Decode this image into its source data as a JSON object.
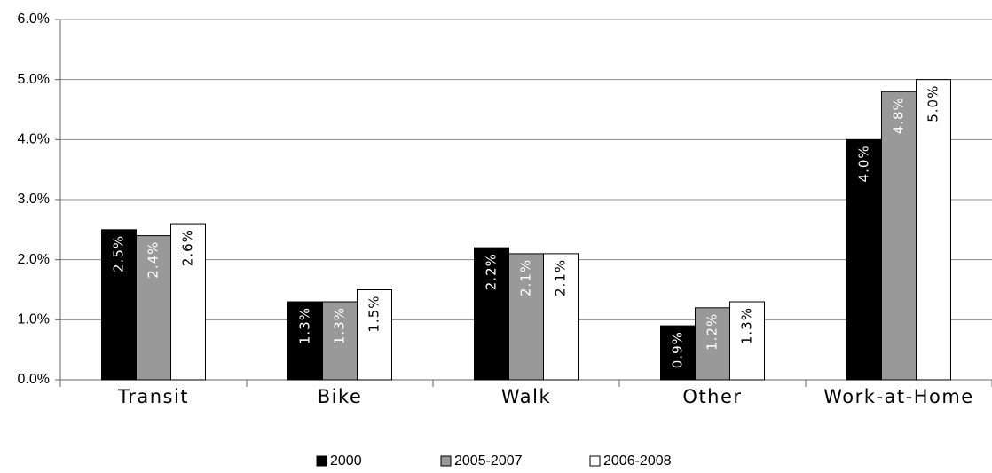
{
  "chart_data": {
    "type": "bar",
    "categories": [
      "Transit",
      "Bike",
      "Walk",
      "Other",
      "Work-at-Home"
    ],
    "series": [
      {
        "name": "2000",
        "color": "#000000",
        "values": [
          2.5,
          1.3,
          2.2,
          0.9,
          4.0
        ],
        "value_labels": [
          "2.5%",
          "1.3%",
          "2.2%",
          "0.9%",
          "4.0%"
        ]
      },
      {
        "name": "2005-2007",
        "color": "#999999",
        "values": [
          2.4,
          1.3,
          2.1,
          1.2,
          4.8
        ],
        "value_labels": [
          "2.4%",
          "1.3%",
          "2.1%",
          "1.2%",
          "4.8%"
        ]
      },
      {
        "name": "2006-2008",
        "color": "#ffffff",
        "values": [
          2.6,
          1.5,
          2.1,
          1.3,
          5.0
        ],
        "value_labels": [
          "2.6%",
          "1.5%",
          "2.1%",
          "1.3%",
          "5.0%"
        ]
      }
    ],
    "ylim": [
      0,
      6
    ],
    "yticks": [
      {
        "value": 0,
        "label": "0.0%"
      },
      {
        "value": 1,
        "label": "1.0%"
      },
      {
        "value": 2,
        "label": "2.0%"
      },
      {
        "value": 3,
        "label": "3.0%"
      },
      {
        "value": 4,
        "label": "4.0%"
      },
      {
        "value": 5,
        "label": "5.0%"
      },
      {
        "value": 6,
        "label": "6.0%"
      }
    ],
    "grid": true,
    "legend": "bottom"
  }
}
